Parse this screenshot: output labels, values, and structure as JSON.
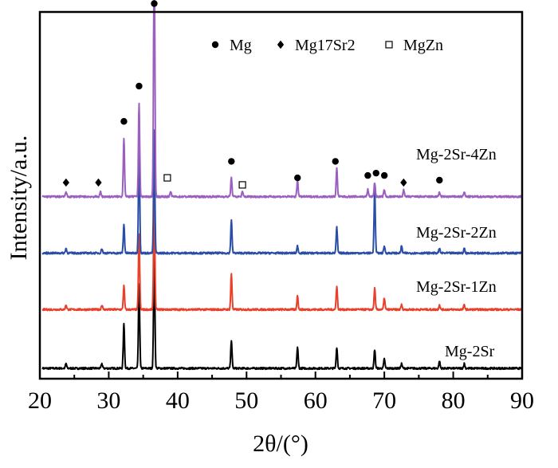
{
  "chart_data": {
    "type": "line",
    "title": "",
    "xlabel": "2θ/(°)",
    "ylabel": "Intensity/a.u.",
    "xlim": [
      20,
      90
    ],
    "x_ticks": [
      20,
      30,
      40,
      50,
      60,
      70,
      80,
      90
    ],
    "ylim": [
      0,
      1
    ],
    "y_ticks_shown": false,
    "grid": false,
    "legend": {
      "placement": "top-right",
      "entries": [
        {
          "marker": "circle",
          "label": "Mg"
        },
        {
          "marker": "diamond",
          "label": "Mg17Sr2"
        },
        {
          "marker": "square-open",
          "label": "MgZn"
        }
      ]
    },
    "series": [
      {
        "name": "Mg-2Sr",
        "color": "#000000",
        "baseline": 0.0,
        "peaks": [
          [
            23.8,
            0.02
          ],
          [
            29.0,
            0.02
          ],
          [
            32.2,
            0.19
          ],
          [
            34.4,
            0.36
          ],
          [
            36.6,
            0.52
          ],
          [
            47.8,
            0.12
          ],
          [
            57.4,
            0.09
          ],
          [
            63.1,
            0.09
          ],
          [
            68.6,
            0.08
          ],
          [
            70.0,
            0.04
          ],
          [
            72.5,
            0.02
          ],
          [
            78.0,
            0.03
          ],
          [
            81.6,
            0.02
          ]
        ]
      },
      {
        "name": "Mg-2Sr-1Zn",
        "color": "#e8402a",
        "baseline": 0.25,
        "peaks": [
          [
            23.8,
            0.02
          ],
          [
            29.0,
            0.02
          ],
          [
            32.2,
            0.1
          ],
          [
            34.4,
            0.32
          ],
          [
            36.6,
            0.5
          ],
          [
            47.8,
            0.15
          ],
          [
            57.4,
            0.06
          ],
          [
            63.1,
            0.1
          ],
          [
            68.6,
            0.09
          ],
          [
            70.0,
            0.05
          ],
          [
            72.5,
            0.02
          ],
          [
            78.0,
            0.02
          ],
          [
            81.6,
            0.02
          ]
        ]
      },
      {
        "name": "Mg-2Sr-2Zn",
        "color": "#2a4ea6",
        "baseline": 0.49,
        "peaks": [
          [
            23.8,
            0.02
          ],
          [
            29.0,
            0.02
          ],
          [
            32.2,
            0.12
          ],
          [
            34.4,
            0.48
          ],
          [
            36.6,
            0.52
          ],
          [
            47.8,
            0.14
          ],
          [
            57.4,
            0.03
          ],
          [
            63.1,
            0.11
          ],
          [
            68.6,
            0.27
          ],
          [
            70.0,
            0.03
          ],
          [
            72.5,
            0.03
          ],
          [
            78.0,
            0.02
          ],
          [
            81.6,
            0.02
          ]
        ]
      },
      {
        "name": "Mg-2Sr-4Zn",
        "color": "#9b5fc0",
        "baseline": 0.73,
        "peaks": [
          [
            23.8,
            0.02
          ],
          [
            28.8,
            0.02
          ],
          [
            32.2,
            0.25
          ],
          [
            34.4,
            0.4
          ],
          [
            36.6,
            1.2
          ],
          [
            39.0,
            0.02
          ],
          [
            47.8,
            0.08
          ],
          [
            49.4,
            0.02
          ],
          [
            57.4,
            0.07
          ],
          [
            63.1,
            0.12
          ],
          [
            67.6,
            0.03
          ],
          [
            68.6,
            0.06
          ],
          [
            70.0,
            0.03
          ],
          [
            72.8,
            0.03
          ],
          [
            78.0,
            0.02
          ],
          [
            81.6,
            0.02
          ]
        ]
      }
    ],
    "annotations": [
      {
        "series": "Mg-2Sr-4Zn",
        "marker": "diamond",
        "x": 23.8,
        "height": 0.06
      },
      {
        "series": "Mg-2Sr-4Zn",
        "marker": "diamond",
        "x": 28.5,
        "height": 0.06
      },
      {
        "series": "Mg-2Sr-4Zn",
        "marker": "circle",
        "x": 32.2,
        "height": 0.32
      },
      {
        "series": "Mg-2Sr-4Zn",
        "marker": "circle",
        "x": 34.4,
        "height": 0.47
      },
      {
        "series": "Mg-2Sr-4Zn",
        "marker": "circle",
        "x": 36.6,
        "height": 1.23
      },
      {
        "series": "Mg-2Sr-4Zn",
        "marker": "square-open",
        "x": 38.5,
        "height": 0.08
      },
      {
        "series": "Mg-2Sr-4Zn",
        "marker": "circle",
        "x": 47.8,
        "height": 0.15
      },
      {
        "series": "Mg-2Sr-4Zn",
        "marker": "square-open",
        "x": 49.4,
        "height": 0.05
      },
      {
        "series": "Mg-2Sr-4Zn",
        "marker": "circle",
        "x": 57.4,
        "height": 0.08
      },
      {
        "series": "Mg-2Sr-4Zn",
        "marker": "circle",
        "x": 62.9,
        "height": 0.15
      },
      {
        "series": "Mg-2Sr-4Zn",
        "marker": "circle",
        "x": 67.6,
        "height": 0.09
      },
      {
        "series": "Mg-2Sr-4Zn",
        "marker": "circle",
        "x": 68.8,
        "height": 0.1
      },
      {
        "series": "Mg-2Sr-4Zn",
        "marker": "circle",
        "x": 70.0,
        "height": 0.09
      },
      {
        "series": "Mg-2Sr-4Zn",
        "marker": "diamond",
        "x": 72.8,
        "height": 0.06
      },
      {
        "series": "Mg-2Sr-4Zn",
        "marker": "circle",
        "x": 78.0,
        "height": 0.07
      }
    ]
  }
}
